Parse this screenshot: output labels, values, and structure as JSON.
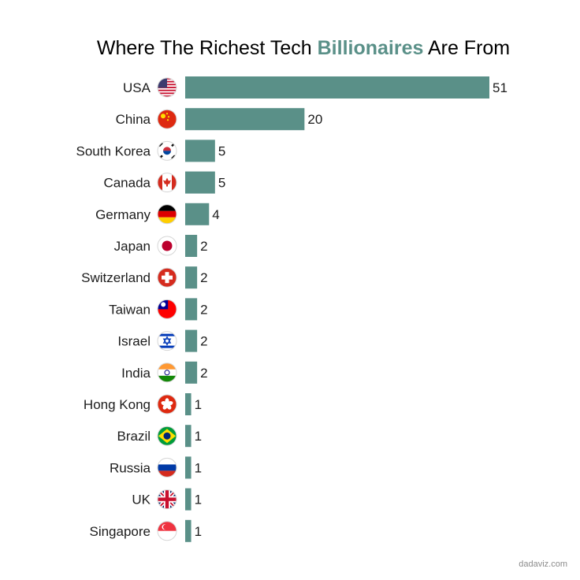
{
  "chart_data": {
    "type": "bar",
    "orientation": "horizontal",
    "title_parts": [
      "Where The Richest Tech ",
      "Billionaires",
      " Are From"
    ],
    "categories": [
      "USA",
      "China",
      "South Korea",
      "Canada",
      "Germany",
      "Japan",
      "Switzerland",
      "Taiwan",
      "Israel",
      "India",
      "Hong Kong",
      "Brazil",
      "Russia",
      "UK",
      "Singapore"
    ],
    "values": [
      51,
      20,
      5,
      5,
      4,
      2,
      2,
      2,
      2,
      2,
      1,
      1,
      1,
      1,
      1
    ],
    "flag_icons": [
      "usa-flag-icon",
      "china-flag-icon",
      "south-korea-flag-icon",
      "canada-flag-icon",
      "germany-flag-icon",
      "japan-flag-icon",
      "switzerland-flag-icon",
      "taiwan-flag-icon",
      "israel-flag-icon",
      "india-flag-icon",
      "hong-kong-flag-icon",
      "brazil-flag-icon",
      "russia-flag-icon",
      "uk-flag-icon",
      "singapore-flag-icon"
    ],
    "xlim": [
      0,
      51
    ],
    "grid": false,
    "legend": "none",
    "colors": {
      "bar": "#5a9088",
      "title_highlight": "#5a9088",
      "text": "#1c1c1c"
    }
  },
  "credit": "dadaviz.com"
}
